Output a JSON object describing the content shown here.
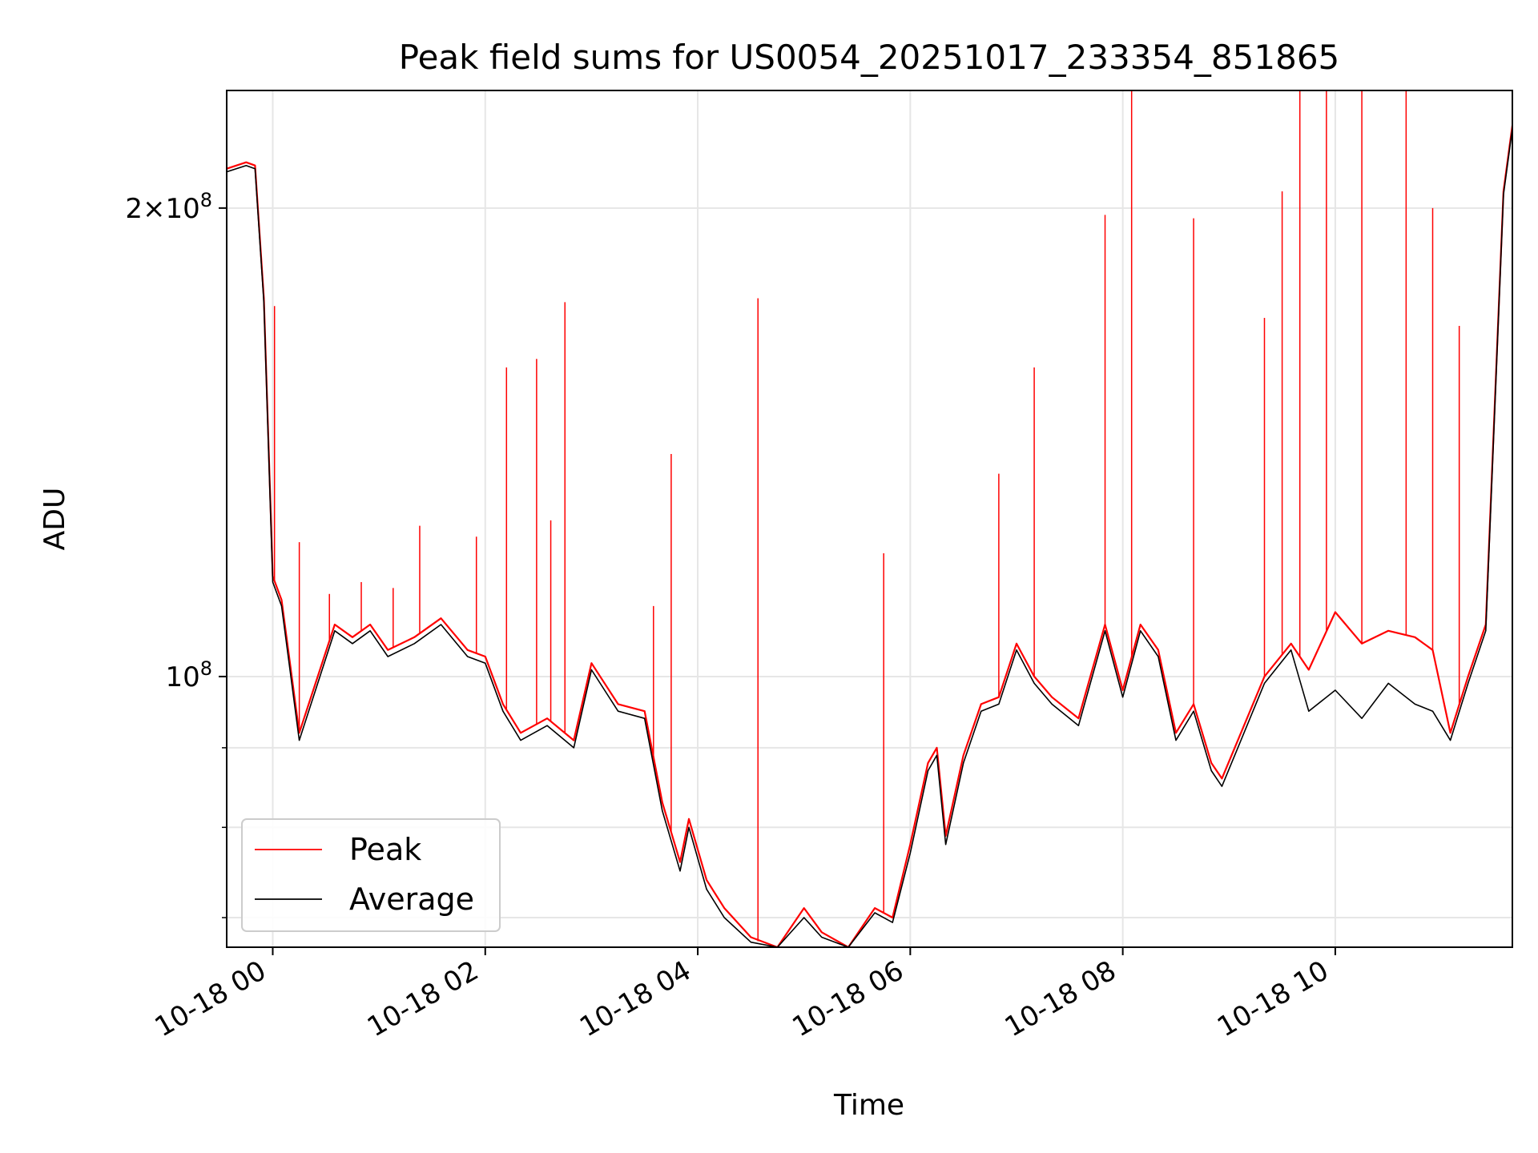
{
  "chart_data": {
    "type": "line",
    "title": "Peak field sums for US0054_20251017_233354_851865",
    "xlabel": "Time",
    "ylabel": "ADU",
    "y_scale": "log",
    "ylim": [
      67000000,
      238000000
    ],
    "xlim": [
      "2025-10-17 23:34",
      "2025-10-18 11:40"
    ],
    "x_ticks": [
      "2025-10-18 00:00",
      "2025-10-18 02:00",
      "2025-10-18 04:00",
      "2025-10-18 06:00",
      "2025-10-18 08:00",
      "2025-10-18 10:00"
    ],
    "x_tick_labels": [
      "10-18 00",
      "10-18 02",
      "10-18 04",
      "10-18 06",
      "10-18 08",
      "10-18 10"
    ],
    "y_major_ticks": [
      100000000,
      200000000
    ],
    "y_major_labels": [
      "10",
      "2×10"
    ],
    "y_major_label_exponent": "8",
    "y_minor_ticks": [
      70000000,
      80000000,
      90000000
    ],
    "grid": true,
    "legend_position": "lower-left",
    "series": [
      {
        "name": "Peak",
        "color": "#ff0000",
        "x": [
          "2025-10-17 23:34",
          "2025-10-17 23:45",
          "2025-10-17 23:50",
          "2025-10-17 23:55",
          "2025-10-18 00:00",
          "2025-10-18 00:05",
          "2025-10-18 00:15",
          "2025-10-18 00:35",
          "2025-10-18 00:45",
          "2025-10-18 00:55",
          "2025-10-18 01:05",
          "2025-10-18 01:20",
          "2025-10-18 01:35",
          "2025-10-18 01:50",
          "2025-10-18 02:00",
          "2025-10-18 02:10",
          "2025-10-18 02:20",
          "2025-10-18 02:35",
          "2025-10-18 02:50",
          "2025-10-18 03:00",
          "2025-10-18 03:15",
          "2025-10-18 03:30",
          "2025-10-18 03:40",
          "2025-10-18 03:50",
          "2025-10-18 03:55",
          "2025-10-18 04:05",
          "2025-10-18 04:15",
          "2025-10-18 04:30",
          "2025-10-18 04:45",
          "2025-10-18 05:00",
          "2025-10-18 05:10",
          "2025-10-18 05:25",
          "2025-10-18 05:40",
          "2025-10-18 05:50",
          "2025-10-18 06:00",
          "2025-10-18 06:10",
          "2025-10-18 06:15",
          "2025-10-18 06:20",
          "2025-10-18 06:30",
          "2025-10-18 06:40",
          "2025-10-18 06:50",
          "2025-10-18 07:00",
          "2025-10-18 07:10",
          "2025-10-18 07:20",
          "2025-10-18 07:35",
          "2025-10-18 07:50",
          "2025-10-18 08:00",
          "2025-10-18 08:10",
          "2025-10-18 08:20",
          "2025-10-18 08:30",
          "2025-10-18 08:40",
          "2025-10-18 08:50",
          "2025-10-18 08:56",
          "2025-10-18 09:05",
          "2025-10-18 09:20",
          "2025-10-18 09:35",
          "2025-10-18 09:45",
          "2025-10-18 10:00",
          "2025-10-18 10:15",
          "2025-10-18 10:30",
          "2025-10-18 10:45",
          "2025-10-18 10:55",
          "2025-10-18 11:05",
          "2025-10-18 11:15",
          "2025-10-18 11:25",
          "2025-10-18 11:35",
          "2025-10-18 11:40"
        ],
        "values": [
          212000000,
          214000000,
          213000000,
          175000000,
          116000000,
          112000000,
          92000000,
          108000000,
          106000000,
          108000000,
          104000000,
          106000000,
          109000000,
          104000000,
          103000000,
          96000000,
          92000000,
          94000000,
          91000000,
          102000000,
          96000000,
          95000000,
          83000000,
          76000000,
          81000000,
          74000000,
          71000000,
          68000000,
          66500000,
          71000000,
          68500000,
          67000000,
          71000000,
          70000000,
          78000000,
          88000000,
          90000000,
          79000000,
          89000000,
          96000000,
          97000000,
          105000000,
          100000000,
          97000000,
          94000000,
          108000000,
          98000000,
          108000000,
          104000000,
          92000000,
          96000000,
          88000000,
          86000000,
          91000000,
          100000000,
          105000000,
          101000000,
          110000000,
          105000000,
          107000000,
          106000000,
          104000000,
          92000000,
          100000000,
          108000000,
          205000000,
          226000000
        ],
        "spikes": [
          {
            "x": "2025-10-18 00:01",
            "value": 173000000
          },
          {
            "x": "2025-10-18 00:15",
            "value": 122000000
          },
          {
            "x": "2025-10-18 00:32",
            "value": 113000000
          },
          {
            "x": "2025-10-18 00:50",
            "value": 115000000
          },
          {
            "x": "2025-10-18 01:08",
            "value": 114000000
          },
          {
            "x": "2025-10-18 01:23",
            "value": 125000000
          },
          {
            "x": "2025-10-18 01:55",
            "value": 123000000
          },
          {
            "x": "2025-10-18 02:12",
            "value": 158000000
          },
          {
            "x": "2025-10-18 02:29",
            "value": 160000000
          },
          {
            "x": "2025-10-18 02:37",
            "value": 126000000
          },
          {
            "x": "2025-10-18 02:45",
            "value": 174000000
          },
          {
            "x": "2025-10-18 03:35",
            "value": 111000000
          },
          {
            "x": "2025-10-18 03:45",
            "value": 139000000
          },
          {
            "x": "2025-10-18 04:34",
            "value": 175000000
          },
          {
            "x": "2025-10-18 05:45",
            "value": 120000000
          },
          {
            "x": "2025-10-18 06:50",
            "value": 135000000
          },
          {
            "x": "2025-10-18 07:10",
            "value": 158000000
          },
          {
            "x": "2025-10-18 07:50",
            "value": 198000000
          },
          {
            "x": "2025-10-18 08:05",
            "value": 245000000
          },
          {
            "x": "2025-10-18 08:40",
            "value": 197000000
          },
          {
            "x": "2025-10-18 09:20",
            "value": 170000000
          },
          {
            "x": "2025-10-18 09:30",
            "value": 205000000
          },
          {
            "x": "2025-10-18 09:40",
            "value": 240000000
          },
          {
            "x": "2025-10-18 09:55",
            "value": 245000000
          },
          {
            "x": "2025-10-18 10:15",
            "value": 245000000
          },
          {
            "x": "2025-10-18 10:40",
            "value": 245000000
          },
          {
            "x": "2025-10-18 10:55",
            "value": 200000000
          },
          {
            "x": "2025-10-18 11:10",
            "value": 168000000
          }
        ]
      },
      {
        "name": "Average",
        "color": "#000000",
        "x": [
          "2025-10-17 23:34",
          "2025-10-17 23:45",
          "2025-10-17 23:50",
          "2025-10-17 23:55",
          "2025-10-18 00:00",
          "2025-10-18 00:05",
          "2025-10-18 00:15",
          "2025-10-18 00:35",
          "2025-10-18 00:45",
          "2025-10-18 00:55",
          "2025-10-18 01:05",
          "2025-10-18 01:20",
          "2025-10-18 01:35",
          "2025-10-18 01:50",
          "2025-10-18 02:00",
          "2025-10-18 02:10",
          "2025-10-18 02:20",
          "2025-10-18 02:35",
          "2025-10-18 02:50",
          "2025-10-18 03:00",
          "2025-10-18 03:15",
          "2025-10-18 03:30",
          "2025-10-18 03:40",
          "2025-10-18 03:50",
          "2025-10-18 03:55",
          "2025-10-18 04:05",
          "2025-10-18 04:15",
          "2025-10-18 04:30",
          "2025-10-18 04:45",
          "2025-10-18 05:00",
          "2025-10-18 05:10",
          "2025-10-18 05:25",
          "2025-10-18 05:40",
          "2025-10-18 05:50",
          "2025-10-18 06:00",
          "2025-10-18 06:10",
          "2025-10-18 06:15",
          "2025-10-18 06:20",
          "2025-10-18 06:30",
          "2025-10-18 06:40",
          "2025-10-18 06:50",
          "2025-10-18 07:00",
          "2025-10-18 07:10",
          "2025-10-18 07:20",
          "2025-10-18 07:35",
          "2025-10-18 07:50",
          "2025-10-18 08:00",
          "2025-10-18 08:10",
          "2025-10-18 08:20",
          "2025-10-18 08:30",
          "2025-10-18 08:40",
          "2025-10-18 08:50",
          "2025-10-18 08:56",
          "2025-10-18 09:05",
          "2025-10-18 09:20",
          "2025-10-18 09:35",
          "2025-10-18 09:45",
          "2025-10-18 10:00",
          "2025-10-18 10:15",
          "2025-10-18 10:30",
          "2025-10-18 10:45",
          "2025-10-18 10:55",
          "2025-10-18 11:05",
          "2025-10-18 11:15",
          "2025-10-18 11:25",
          "2025-10-18 11:35",
          "2025-10-18 11:40"
        ],
        "values": [
          211000000,
          213000000,
          212000000,
          174000000,
          115000000,
          111000000,
          91000000,
          107000000,
          105000000,
          107000000,
          103000000,
          105000000,
          108000000,
          103000000,
          102000000,
          95000000,
          91000000,
          93000000,
          90000000,
          101000000,
          95000000,
          94000000,
          82000000,
          75000000,
          80000000,
          73000000,
          70000000,
          67500000,
          66000000,
          70000000,
          68000000,
          66500000,
          70500000,
          69500000,
          77000000,
          87000000,
          89000000,
          78000000,
          88000000,
          95000000,
          96000000,
          104000000,
          99000000,
          96000000,
          93000000,
          107000000,
          97000000,
          107000000,
          103000000,
          91000000,
          95000000,
          87000000,
          85000000,
          90000000,
          99000000,
          104000000,
          95000000,
          98000000,
          94000000,
          99000000,
          96000000,
          95000000,
          91000000,
          99000000,
          107000000,
          204000000,
          225000000
        ]
      }
    ]
  }
}
